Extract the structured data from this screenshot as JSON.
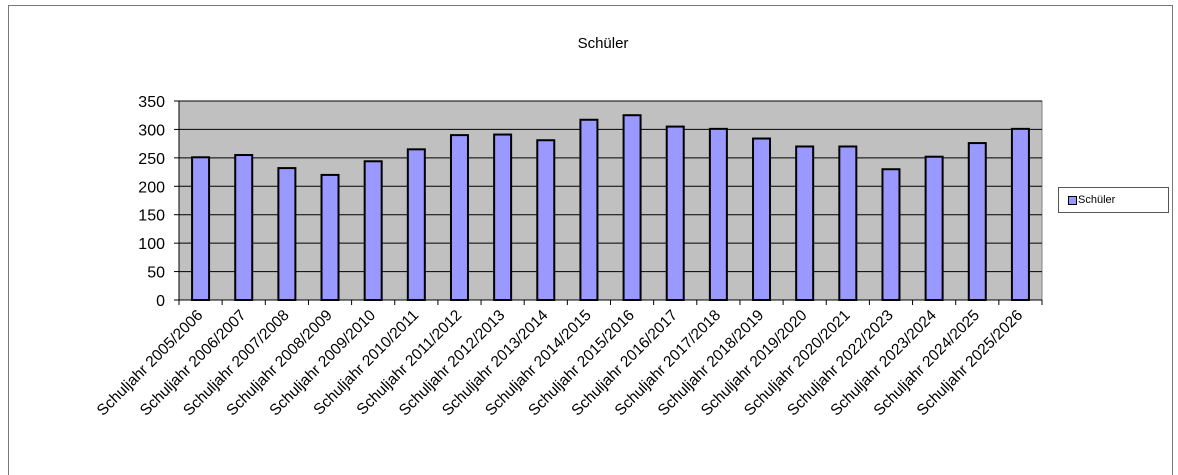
{
  "chart_data": {
    "type": "bar",
    "title": "Schüler",
    "categories": [
      "Schuljahr 2005/2006",
      "Schuljahr 2006/2007",
      "Schuljahr 2007/2008",
      "Schuljahr 2008/2009",
      "Schuljahr 2009/2010",
      "Schuljahr 2010/2011",
      "Schuljahr 2011/2012",
      "Schuljahr 2012/2013",
      "Schuljahr 2013/2014",
      "Schuljahr 2014/2015",
      "Schuljahr 2015/2016",
      "Schuljahr 2016/2017",
      "Schuljahr 2017/2018",
      "Schuljahr 2018/2019",
      "Schuljahr 2019/2020",
      "Schuljahr 2020/2021",
      "Schuljahr 2022/2023",
      "Schuljahr 2023/2024",
      "Schuljahr 2024/2025",
      "Schuljahr 2025/2026"
    ],
    "series": [
      {
        "name": "Schüler",
        "values": [
          251,
          255,
          232,
          220,
          244,
          265,
          290,
          291,
          281,
          317,
          325,
          305,
          301,
          284,
          270,
          270,
          230,
          252,
          276,
          301
        ]
      }
    ],
    "ylim": [
      0,
      350
    ],
    "yticks": [
      "0",
      "50",
      "100",
      "150",
      "200",
      "250",
      "300",
      "350"
    ],
    "xlabel": "",
    "ylabel": "",
    "grid": true,
    "legend": "right",
    "colors": {
      "bar_fill": "#9999ff",
      "bar_stroke": "#000000",
      "plot_background": "#c0c0c0",
      "gridline": "#000000"
    }
  }
}
